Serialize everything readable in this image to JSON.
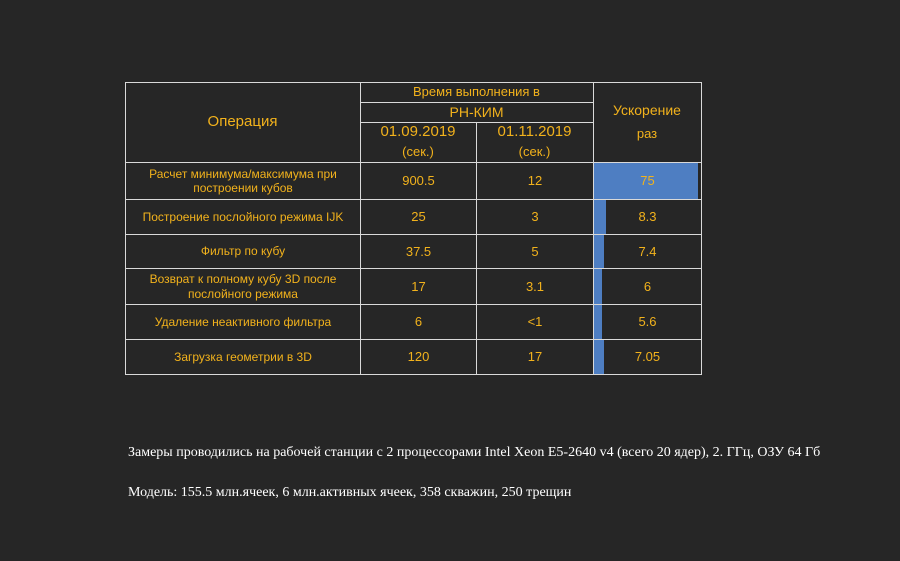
{
  "table": {
    "header": {
      "operation": "Операция",
      "time_line1": "Время выполнения в",
      "time_line2": "РН-КИМ",
      "date1": "01.09.2019",
      "date2": "01.11.2019",
      "unit1": "(сек.)",
      "unit2": "(сек.)",
      "speedup_line1": "Ускорение",
      "speedup_line2": "раз"
    },
    "bar_color": "#4e7ec2",
    "text_color": "#f2b21c",
    "rows": [
      {
        "name_line1": "Расчет минимума/максимума при",
        "name_line2": "построении кубов",
        "t1": "900.5",
        "t2": "12",
        "speedup": "75",
        "speedup_value": 75
      },
      {
        "name_line1": "Построение послойного режима IJK",
        "name_line2": "",
        "t1": "25",
        "t2": "3",
        "speedup": "8.3",
        "speedup_value": 8.3
      },
      {
        "name_line1": "Фильтр по кубу",
        "name_line2": "",
        "t1": "37.5",
        "t2": "5",
        "speedup": "7.4",
        "speedup_value": 7.4
      },
      {
        "name_line1": "Возврат к полному кубу 3D после",
        "name_line2": "послойного режима",
        "t1": "17",
        "t2": "3.1",
        "speedup": "6",
        "speedup_value": 6
      },
      {
        "name_line1": "Удаление неактивного фильтра",
        "name_line2": "",
        "t1": "6",
        "t2": "<1",
        "speedup": "5.6",
        "speedup_value": 5.6
      },
      {
        "name_line1": "Загрузка геометрии в 3D",
        "name_line2": "",
        "t1": "120",
        "t2": "17",
        "speedup": "7.05",
        "speedup_value": 7.05
      }
    ]
  },
  "notes": {
    "hardware": "Замеры проводились на рабочей станции с 2 процессорами Intel Xeon E5-2640 v4 (всего 20 ядер), 2. ГГц, ОЗУ 64 Гб",
    "model": "Модель: 155.5 млн.ячеек, 6 млн.активных ячеек, 358 скважин, 250 трещин"
  }
}
